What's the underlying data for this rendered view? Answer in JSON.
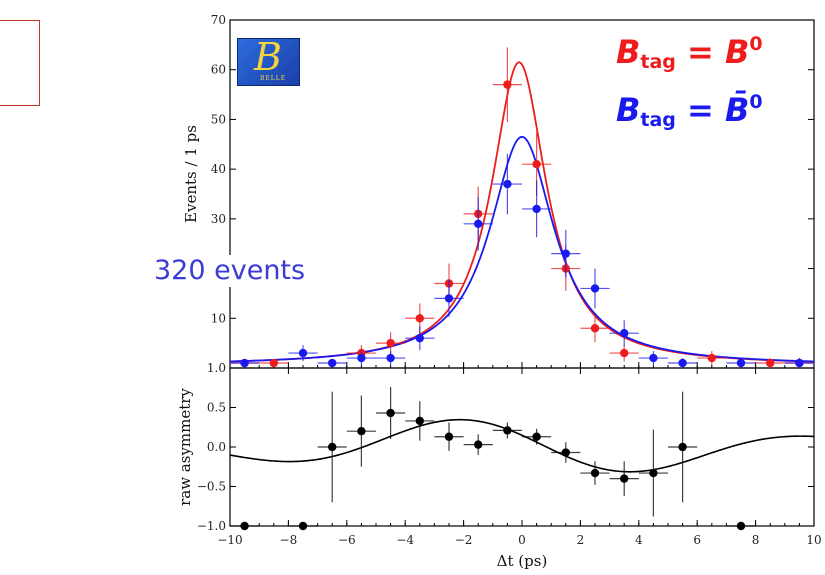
{
  "labels": {
    "count": "320 events",
    "legend_red": {
      "b": "B",
      "sub": "tag",
      "eq": " = B",
      "sup": "0"
    },
    "legend_blue": {
      "b": "B",
      "sub": "tag",
      "eq": " = B̄",
      "sup": "0"
    }
  },
  "colors": {
    "red": "#ee1c1c",
    "blue": "#1a1aee",
    "black": "#000000"
  },
  "chart_data": [
    {
      "type": "scatter",
      "ylabel": "Events / 1 ps",
      "xlim": [
        -10,
        10
      ],
      "ylim": [
        0,
        70
      ],
      "yticks": [
        10,
        20,
        30,
        40,
        50,
        60,
        70
      ],
      "ytick_labels": [
        "10",
        "20",
        "30",
        "40",
        "50",
        "60",
        "70"
      ],
      "series": [
        {
          "name": "B_tag = B0",
          "color": "#ee1c1c",
          "points": [
            {
              "x": -9.5,
              "y": 1.0,
              "err": 0.8
            },
            {
              "x": -8.5,
              "y": 1.0,
              "err": 0.8
            },
            {
              "x": -5.5,
              "y": 3.0,
              "err": 1.6
            },
            {
              "x": -4.5,
              "y": 5.0,
              "err": 2.2
            },
            {
              "x": -3.5,
              "y": 10.0,
              "err": 3.0
            },
            {
              "x": -2.5,
              "y": 17.0,
              "err": 4.0
            },
            {
              "x": -1.5,
              "y": 31.0,
              "err": 5.5
            },
            {
              "x": -0.5,
              "y": 57.0,
              "err": 7.5
            },
            {
              "x": 0.5,
              "y": 41.0,
              "err": 6.4
            },
            {
              "x": 1.5,
              "y": 20.0,
              "err": 4.5
            },
            {
              "x": 2.5,
              "y": 8.0,
              "err": 2.8
            },
            {
              "x": 3.5,
              "y": 3.0,
              "err": 1.7
            },
            {
              "x": 6.5,
              "y": 2.0,
              "err": 1.4
            },
            {
              "x": 8.5,
              "y": 1.0,
              "err": 1.0
            },
            {
              "x": 9.5,
              "y": 1.0,
              "err": 1.0
            }
          ],
          "curve": {
            "peak": 61,
            "center": -0.1,
            "scale": 1.15,
            "baseline": 0.5
          }
        },
        {
          "name": "B_tag = B0bar",
          "color": "#1a1aee",
          "points": [
            {
              "x": -9.5,
              "y": 1.0,
              "err": 0.8
            },
            {
              "x": -7.5,
              "y": 3.0,
              "err": 1.6
            },
            {
              "x": -6.5,
              "y": 1.0,
              "err": 0.8
            },
            {
              "x": -5.5,
              "y": 2.0,
              "err": 1.4
            },
            {
              "x": -4.5,
              "y": 2.0,
              "err": 1.4
            },
            {
              "x": -3.5,
              "y": 6.0,
              "err": 2.4
            },
            {
              "x": -2.5,
              "y": 14.0,
              "err": 3.7
            },
            {
              "x": -1.5,
              "y": 29.0,
              "err": 5.4
            },
            {
              "x": -0.5,
              "y": 37.0,
              "err": 6.1
            },
            {
              "x": 0.5,
              "y": 32.0,
              "err": 5.7
            },
            {
              "x": 1.5,
              "y": 23.0,
              "err": 4.8
            },
            {
              "x": 2.5,
              "y": 16.0,
              "err": 4.0
            },
            {
              "x": 3.5,
              "y": 7.0,
              "err": 2.6
            },
            {
              "x": 4.5,
              "y": 2.0,
              "err": 1.4
            },
            {
              "x": 5.5,
              "y": 1.0,
              "err": 1.0
            },
            {
              "x": 7.5,
              "y": 1.0,
              "err": 1.0
            },
            {
              "x": 9.5,
              "y": 1.0,
              "err": 1.0
            }
          ],
          "curve": {
            "peak": 46,
            "center": 0.0,
            "scale": 1.35,
            "baseline": 0.5
          }
        }
      ]
    },
    {
      "type": "scatter",
      "xlabel": "Δt (ps)",
      "ylabel": "raw asymmetry",
      "xlim": [
        -10,
        10
      ],
      "ylim": [
        -1.0,
        1.0
      ],
      "xticks": [
        -10,
        -8,
        -6,
        -4,
        -2,
        0,
        2,
        4,
        6,
        8,
        10
      ],
      "xtick_labels": [
        "−10",
        "−8",
        "−6",
        "−4",
        "−2",
        "0",
        "2",
        "4",
        "6",
        "8",
        "10"
      ],
      "yticks": [
        -1.0,
        -0.5,
        0.0,
        0.5,
        1.0
      ],
      "ytick_labels": [
        "−1.0",
        "−0.5",
        "0.0",
        "0.5",
        "1.0"
      ],
      "series": [
        {
          "name": "raw asymmetry",
          "color": "#000000",
          "points": [
            {
              "x": -9.5,
              "y": -1.0,
              "err": 0.0
            },
            {
              "x": -7.5,
              "y": -1.0,
              "err": 0.0
            },
            {
              "x": -6.5,
              "y": 0.0,
              "err": 0.7
            },
            {
              "x": -5.5,
              "y": 0.2,
              "err": 0.45
            },
            {
              "x": -4.5,
              "y": 0.43,
              "err": 0.33
            },
            {
              "x": -3.5,
              "y": 0.33,
              "err": 0.25
            },
            {
              "x": -2.5,
              "y": 0.13,
              "err": 0.18
            },
            {
              "x": -1.5,
              "y": 0.03,
              "err": 0.13
            },
            {
              "x": -0.5,
              "y": 0.21,
              "err": 0.1
            },
            {
              "x": 0.5,
              "y": 0.13,
              "err": 0.1
            },
            {
              "x": 1.5,
              "y": -0.07,
              "err": 0.13
            },
            {
              "x": 2.5,
              "y": -0.33,
              "err": 0.15
            },
            {
              "x": 3.5,
              "y": -0.4,
              "err": 0.22
            },
            {
              "x": 4.5,
              "y": -0.33,
              "err": 0.55
            },
            {
              "x": 5.5,
              "y": 0.0,
              "err": 0.7
            },
            {
              "x": 7.5,
              "y": -1.0,
              "err": 0.0
            }
          ],
          "curve": {
            "amplitude": 0.33,
            "phase_shift": 2.3,
            "omega": 0.5,
            "decay": 5.5
          }
        }
      ]
    }
  ]
}
